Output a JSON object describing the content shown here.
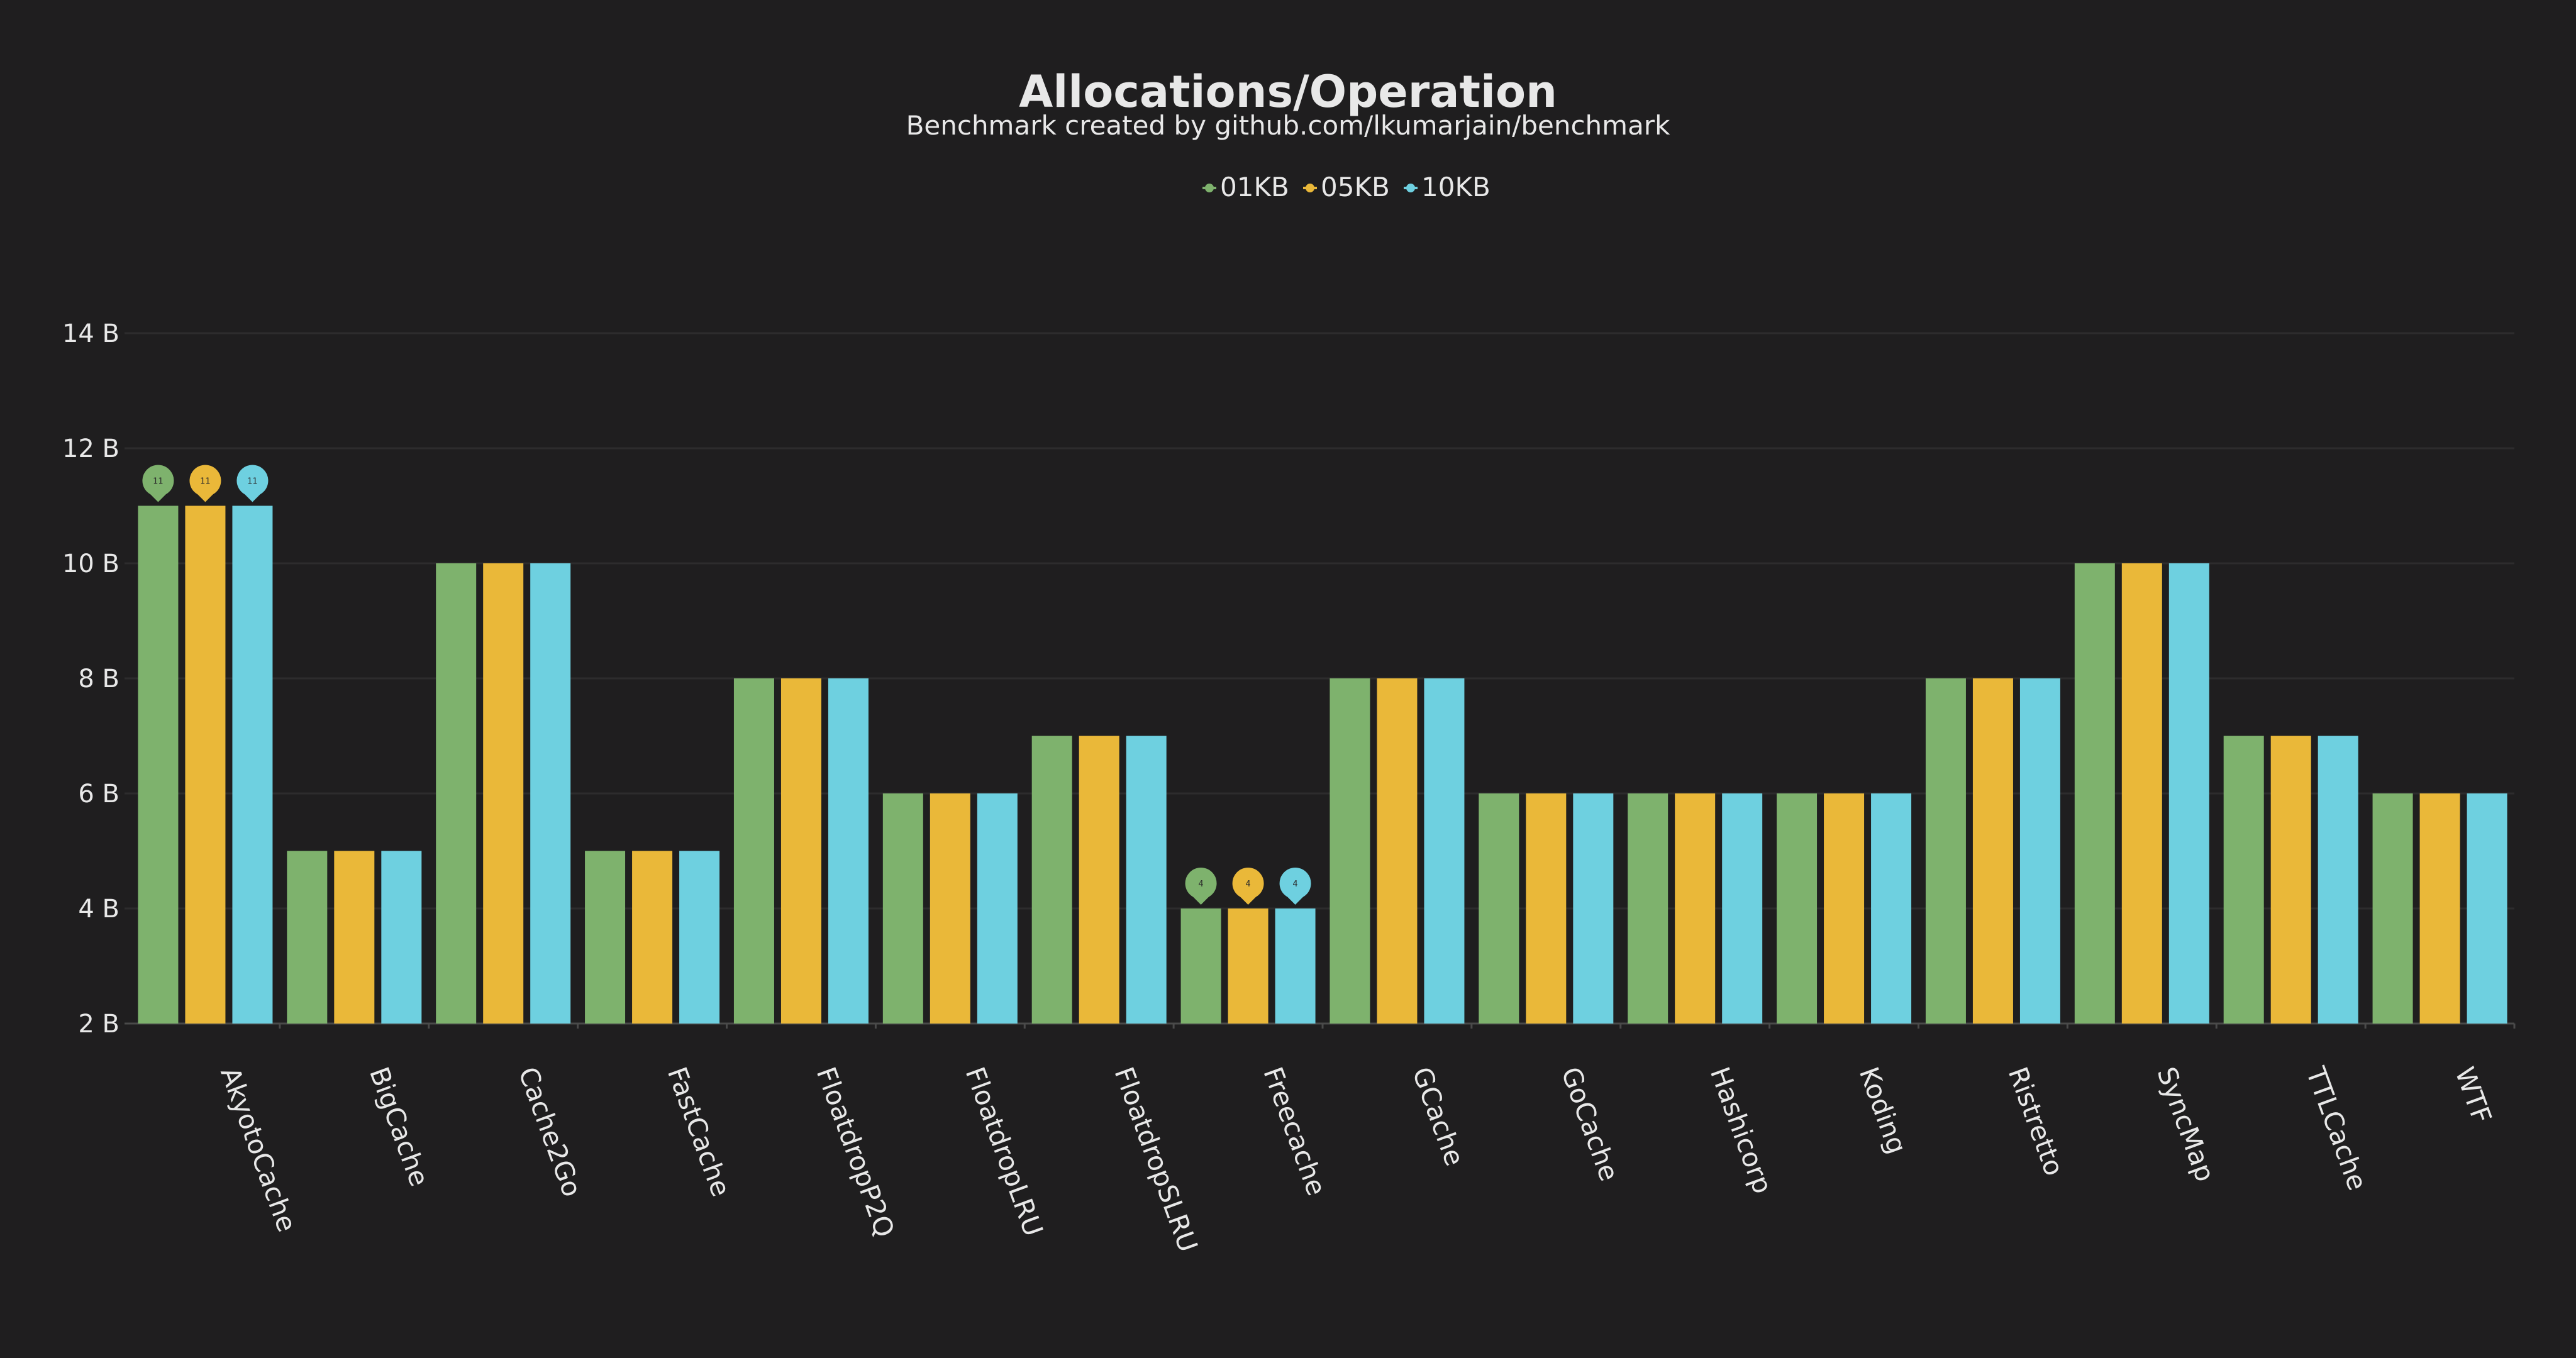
{
  "chart_data": {
    "type": "bar",
    "title": "Allocations/Operation",
    "subtitle": "Benchmark created by github.com/lkumarjain/benchmark",
    "categories": [
      "AkyotoCache",
      "BigCache",
      "Cache2Go",
      "FastCache",
      "FloatdropP2Q",
      "FloatdropLRU",
      "FloatdropSLRU",
      "Freecache",
      "GCache",
      "GoCache",
      "Hashicorp",
      "Koding",
      "Ristretto",
      "SyncMap",
      "TTLCache",
      "WTF"
    ],
    "series": [
      {
        "name": "01KB",
        "color": "#7eb26d",
        "values": [
          11,
          5,
          10,
          5,
          8,
          6,
          7,
          4,
          8,
          6,
          6,
          6,
          8,
          10,
          7,
          6
        ]
      },
      {
        "name": "05KB",
        "color": "#eab839",
        "values": [
          11,
          5,
          10,
          5,
          8,
          6,
          7,
          4,
          8,
          6,
          6,
          6,
          8,
          10,
          7,
          6
        ]
      },
      {
        "name": "10KB",
        "color": "#6ed0e0",
        "values": [
          11,
          5,
          10,
          5,
          8,
          6,
          7,
          4,
          8,
          6,
          6,
          6,
          8,
          10,
          7,
          6
        ]
      }
    ],
    "yticks": [
      "2 B",
      "4 B",
      "6 B",
      "8 B",
      "10 B",
      "12 B",
      "14 B"
    ],
    "ylim": [
      2,
      14
    ],
    "markers": [
      {
        "category": "AkyotoCache",
        "label": "11"
      },
      {
        "category": "Freecache",
        "label": "4"
      }
    ],
    "legend_position": "top-center",
    "grid": true
  }
}
